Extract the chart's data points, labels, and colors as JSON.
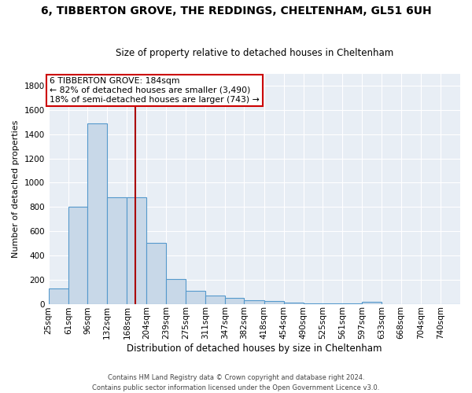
{
  "title1": "6, TIBBERTON GROVE, THE REDDINGS, CHELTENHAM, GL51 6UH",
  "title2": "Size of property relative to detached houses in Cheltenham",
  "xlabel": "Distribution of detached houses by size in Cheltenham",
  "ylabel": "Number of detached properties",
  "footer": "Contains HM Land Registry data © Crown copyright and database right 2024.\nContains public sector information licensed under the Open Government Licence v3.0.",
  "bin_labels": [
    "25sqm",
    "61sqm",
    "96sqm",
    "132sqm",
    "168sqm",
    "204sqm",
    "239sqm",
    "275sqm",
    "311sqm",
    "347sqm",
    "382sqm",
    "418sqm",
    "454sqm",
    "490sqm",
    "525sqm",
    "561sqm",
    "597sqm",
    "633sqm",
    "668sqm",
    "704sqm",
    "740sqm"
  ],
  "bin_edges": [
    25,
    61,
    96,
    132,
    168,
    204,
    239,
    275,
    311,
    347,
    382,
    418,
    454,
    490,
    525,
    561,
    597,
    633,
    668,
    704,
    740,
    776
  ],
  "values": [
    130,
    800,
    1490,
    880,
    880,
    500,
    205,
    110,
    70,
    50,
    30,
    20,
    10,
    5,
    5,
    5,
    15,
    0,
    0,
    0,
    0
  ],
  "bar_color": "#c8d8e8",
  "bar_edge_color": "#5599cc",
  "bar_edge_width": 0.8,
  "vline_x": 184,
  "vline_color": "#aa0000",
  "annotation_title": "6 TIBBERTON GROVE: 184sqm",
  "annotation_line1": "← 82% of detached houses are smaller (3,490)",
  "annotation_line2": "18% of semi-detached houses are larger (743) →",
  "annotation_box_color": "#ffffff",
  "annotation_box_edge": "#cc0000",
  "plot_bg_color": "#e8eef5",
  "ylim": [
    0,
    1900
  ],
  "yticks": [
    0,
    200,
    400,
    600,
    800,
    1000,
    1200,
    1400,
    1600,
    1800
  ],
  "grid_color": "#ffffff",
  "title1_fontsize": 10,
  "title2_fontsize": 8.5,
  "ylabel_fontsize": 8,
  "xlabel_fontsize": 8.5,
  "footer_fontsize": 6,
  "tick_fontsize": 7.5,
  "annot_fontsize": 7.8
}
